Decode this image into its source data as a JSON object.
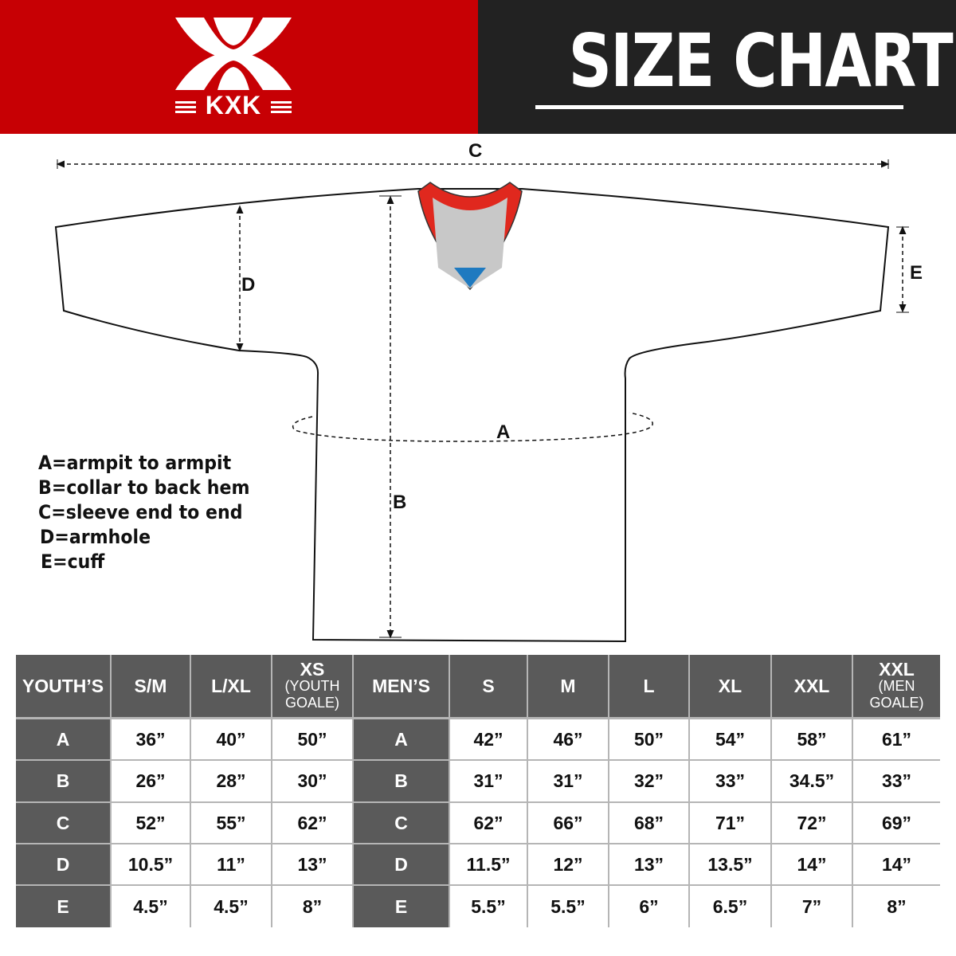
{
  "brand": {
    "logo_text": "KXK",
    "colors": {
      "red": "#c70004",
      "dark": "#222222",
      "header_cell": "#5a5a5a"
    }
  },
  "header": {
    "title": "SIZE CHART"
  },
  "diagram": {
    "labels": {
      "a": "A",
      "b": "B",
      "c": "C",
      "d": "D",
      "e": "E"
    },
    "legend": [
      "A=armpit to armpit",
      "B=collar to back hem",
      "C=sleeve end to end",
      "D=armhole",
      "E=cuff"
    ]
  },
  "table": {
    "youth_header": "YOUTH’S",
    "men_header": "MEN’S",
    "youth_sizes": [
      {
        "main": "S/M",
        "sub": ""
      },
      {
        "main": "L/XL",
        "sub": ""
      },
      {
        "main": "XS",
        "sub": "(YOUTH GOALE)"
      }
    ],
    "men_sizes": [
      {
        "main": "S",
        "sub": ""
      },
      {
        "main": "M",
        "sub": ""
      },
      {
        "main": "L",
        "sub": ""
      },
      {
        "main": "XL",
        "sub": ""
      },
      {
        "main": "XXL",
        "sub": ""
      },
      {
        "main": "XXL",
        "sub": "(MEN GOALE)"
      }
    ],
    "rows": [
      {
        "label": "A",
        "youth": [
          "36”",
          "40”",
          "50”"
        ],
        "men": [
          "42”",
          "46”",
          "50”",
          "54”",
          "58”",
          "61”"
        ]
      },
      {
        "label": "B",
        "youth": [
          "26”",
          "28”",
          "30”"
        ],
        "men": [
          "31”",
          "31”",
          "32”",
          "33”",
          "34.5”",
          "33”"
        ]
      },
      {
        "label": "C",
        "youth": [
          "52”",
          "55”",
          "62”"
        ],
        "men": [
          "62”",
          "66”",
          "68”",
          "71”",
          "72”",
          "69”"
        ]
      },
      {
        "label": "D",
        "youth": [
          "10.5”",
          "11”",
          "13”"
        ],
        "men": [
          "11.5”",
          "12”",
          "13”",
          "13.5”",
          "14”",
          "14”"
        ]
      },
      {
        "label": "E",
        "youth": [
          "4.5”",
          "4.5”",
          "8”"
        ],
        "men": [
          "5.5”",
          "5.5”",
          "6”",
          "6.5”",
          "7”",
          "8”"
        ]
      }
    ]
  }
}
